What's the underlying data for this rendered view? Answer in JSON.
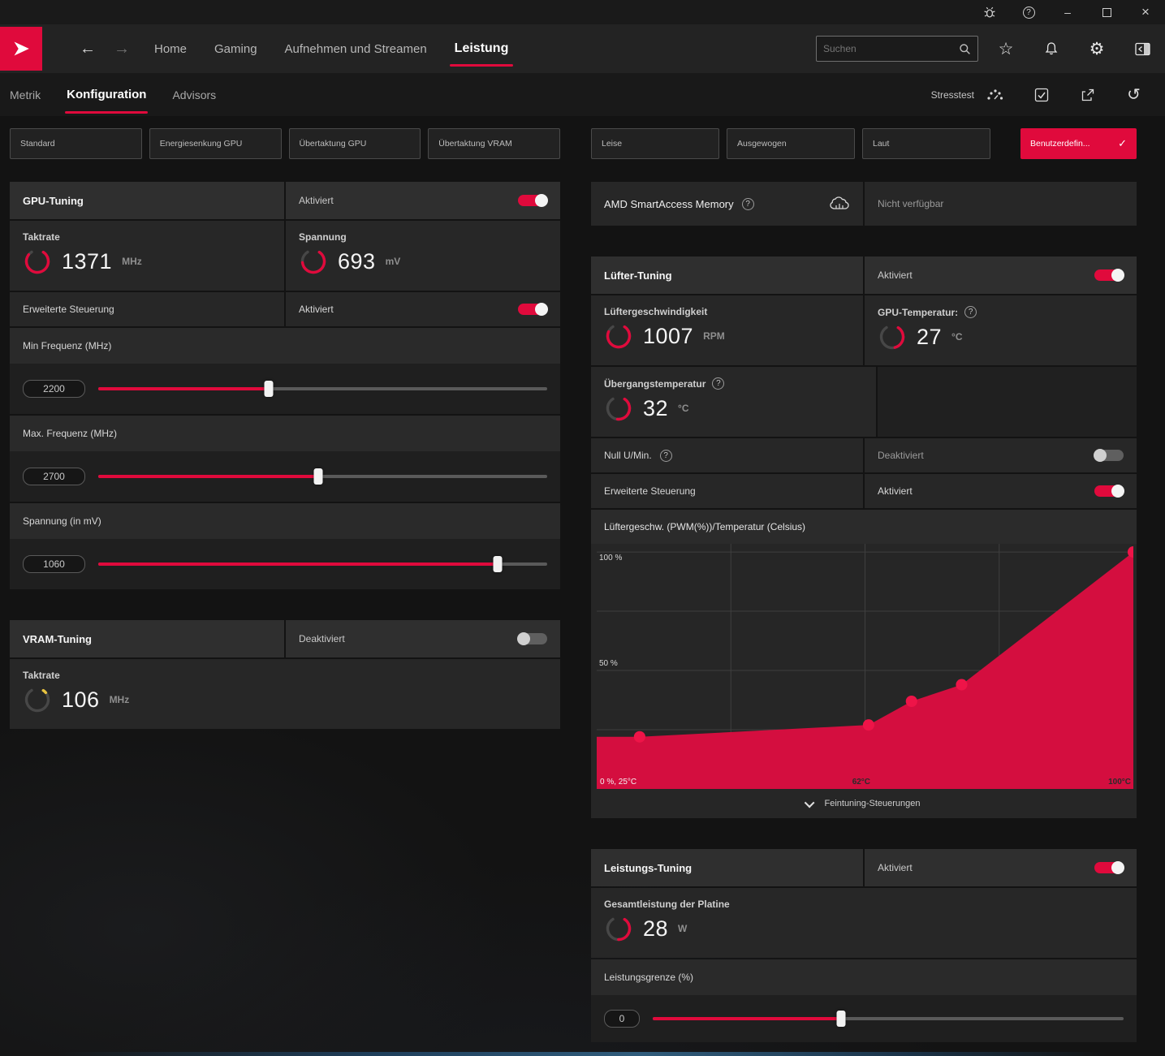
{
  "colors": {
    "accent": "#e00a3c",
    "chart_fill": "#d40e3f",
    "chart_dot": "#ee1448",
    "gauge_base": "#474747",
    "vram_gauge": "#e8c33f"
  },
  "icons": {
    "help": "?",
    "minimize": "–",
    "close": "×",
    "check": "✓",
    "star": "☆",
    "gear": "⚙",
    "reset": "↺",
    "back": "←",
    "forward": "→"
  },
  "nav": {
    "items": [
      "Home",
      "Gaming",
      "Aufnehmen und Streamen",
      "Leistung"
    ],
    "search_placeholder": "Suchen"
  },
  "subnav": {
    "tabs": [
      "Metrik",
      "Konfiguration",
      "Advisors"
    ],
    "stresstest_label": "Stresstest"
  },
  "presets": {
    "left": [
      "Standard",
      "Energiesenkung GPU",
      "Übertaktung GPU",
      "Übertaktung VRAM"
    ],
    "right": [
      "Leise",
      "Ausgewogen",
      "Laut"
    ],
    "custom": "Benutzerdefin..."
  },
  "gpu_tuning": {
    "title": "GPU-Tuning",
    "status": "Aktiviert",
    "taktrate_label": "Taktrate",
    "taktrate_value": "1371",
    "taktrate_unit": "MHz",
    "spannung_label": "Spannung",
    "spannung_value": "693",
    "spannung_unit": "mV",
    "advanced_label": "Erweiterte Steuerung",
    "advanced_status": "Aktiviert",
    "min_freq_label": "Min Frequenz (MHz)",
    "min_freq_value": "2200",
    "max_freq_label": "Max. Frequenz (MHz)",
    "max_freq_value": "2700",
    "voltage_label": "Spannung (in mV)",
    "voltage_value": "1060"
  },
  "vram_tuning": {
    "title": "VRAM-Tuning",
    "status": "Deaktiviert",
    "taktrate_label": "Taktrate",
    "taktrate_value": "106",
    "taktrate_unit": "MHz"
  },
  "smart_access": {
    "title": "AMD SmartAccess Memory",
    "status": "Nicht verfügbar"
  },
  "fan_tuning": {
    "title": "Lüfter-Tuning",
    "status": "Aktiviert",
    "speed_label": "Lüftergeschwindigkeit",
    "speed_value": "1007",
    "speed_unit": "RPM",
    "gpu_temp_label": "GPU-Temperatur:",
    "gpu_temp_value": "27",
    "gpu_temp_unit": "°C",
    "junction_label": "Übergangstemperatur",
    "junction_value": "32",
    "junction_unit": "°C",
    "zero_rpm_label": "Null U/Min.",
    "zero_rpm_status": "Deaktiviert",
    "advanced_label": "Erweiterte Steuerung",
    "advanced_status": "Aktiviert",
    "fine_tuning_label": "Feintuning-Steuerungen"
  },
  "chart_data": {
    "type": "area",
    "title": "Lüftergeschw. (PWM(%))/Temperatur (Celsius)",
    "points": [
      [
        31,
        22
      ],
      [
        63,
        27
      ],
      [
        69,
        37
      ],
      [
        76,
        44
      ],
      [
        100,
        100
      ]
    ],
    "xlim": [
      25,
      100
    ],
    "ylim": [
      0,
      100
    ],
    "xlabel": "Temperatur (Celsius)",
    "ylabel": "Lüftergeschw. (PWM(%))",
    "grid": true,
    "y_ticks": [
      {
        "pos": 100,
        "label": "100 %"
      },
      {
        "pos": 50,
        "label": "50 %"
      }
    ],
    "x_ticks": [
      {
        "pos": 25,
        "label": "0 %, 25°C"
      },
      {
        "pos": 62,
        "label": "62°C"
      },
      {
        "pos": 100,
        "label": "100°C"
      }
    ]
  },
  "power_tuning": {
    "title": "Leistungs-Tuning",
    "status": "Aktiviert",
    "power_label": "Gesamtleistung der Platine",
    "power_value": "28",
    "power_unit": "W",
    "limit_label": "Leistungsgrenze (%)",
    "limit_value": "0"
  }
}
